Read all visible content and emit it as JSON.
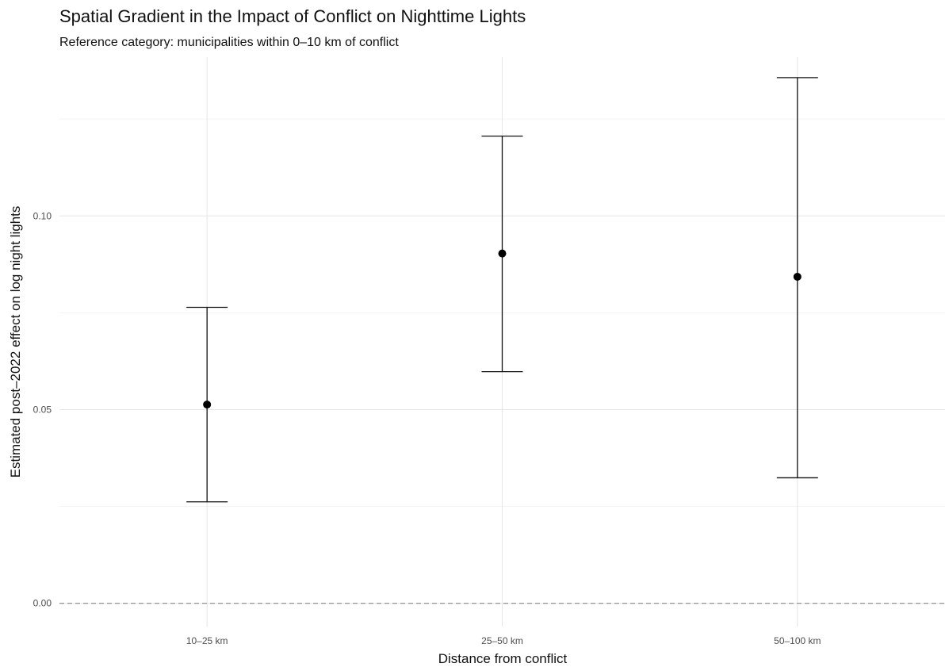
{
  "chart_data": {
    "type": "scatter",
    "title": "Spatial Gradient in the Impact of Conflict on Nighttime Lights",
    "subtitle": "Reference category: municipalities within 0–10 km of conflict",
    "xlabel": "Distance from conflict",
    "ylabel": "Estimated post–2022 effect on log night lights",
    "categories": [
      "10–25 km",
      "25–50 km",
      "50–100 km"
    ],
    "series": [
      {
        "estimate": [
          0.0513,
          0.0903,
          0.0843
        ],
        "ci_low": [
          0.0262,
          0.0598,
          0.0324
        ],
        "ci_high": [
          0.0764,
          0.1206,
          0.1357
        ]
      }
    ],
    "ylim": [
      -0.006,
      0.141
    ],
    "y_ticks": [
      0.0,
      0.05,
      0.1
    ],
    "y_tick_labels": [
      "0.00",
      "0.05",
      "0.10"
    ],
    "reference_line": 0,
    "grid": true,
    "legend": "none"
  }
}
